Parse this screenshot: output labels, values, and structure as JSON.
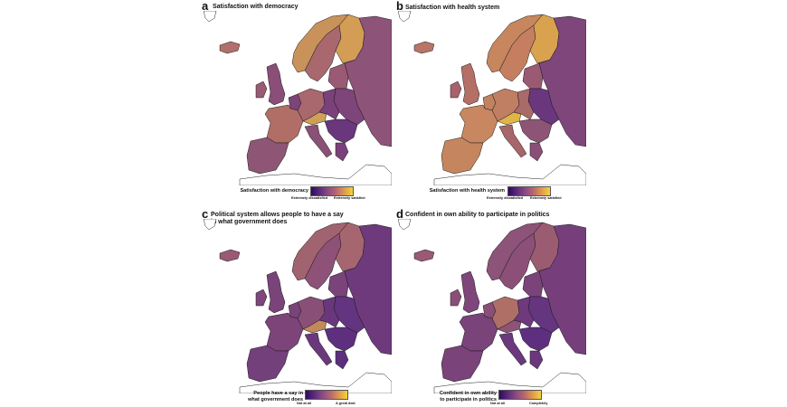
{
  "panels": [
    {
      "letter": "a",
      "title": "Satisfaction with democracy",
      "legend": {
        "title": "Satisfaction with democracy",
        "low": "Extremely dissatisfied",
        "high": "Extremely satisfied"
      },
      "fills": {
        "scand": "#a8686e",
        "finland": "#d39d55",
        "norway": "#c9925b",
        "iceland": "#b26f6c",
        "ireland": "#9a5a73",
        "uk": "#8a4e78",
        "fr": "#b06e67",
        "iberia": "#8f5575",
        "de": "#a9676e",
        "benelux": "#7d447a",
        "alps": "#d1a058",
        "ceu": "#7a417a",
        "italy": "#8b5076",
        "balkans": "#6a367c",
        "russia": "#8e5378",
        "east": "#7e457a",
        "greece": "#7a407c",
        "baltics": "#9a5a73"
      }
    },
    {
      "letter": "b",
      "title": "Satisfaction with health system",
      "legend": {
        "title": "Satisfaction with health system",
        "low": "Extremely dissatisfied",
        "high": "Extremely satisfied"
      },
      "fills": {
        "scand": "#c57f60",
        "finland": "#d9a24f",
        "norway": "#c7865d",
        "iceland": "#b97568",
        "ireland": "#a8626c",
        "uk": "#b46f66",
        "fr": "#c88760",
        "iberia": "#c5865f",
        "de": "#c07f62",
        "benelux": "#c3825f",
        "alps": "#e1b449",
        "ceu": "#a96a69",
        "italy": "#a76669",
        "balkans": "#8e5476",
        "russia": "#7e467a",
        "east": "#6a367e",
        "greece": "#8a4f77",
        "baltics": "#9a5a73"
      }
    },
    {
      "letter": "c",
      "title": "Political system allows people to have a say\nin what government does",
      "legend": {
        "title": "People have a say in\nwhat government does",
        "low": "Not at all",
        "high": "A great deal"
      },
      "fills": {
        "scand": "#8e5178",
        "finland": "#a6666f",
        "norway": "#a1636f",
        "iceland": "#9a5a73",
        "ireland": "#7e467a",
        "uk": "#7a437a",
        "fr": "#7d447a",
        "iberia": "#73407c",
        "de": "#8a4f77",
        "benelux": "#7a437a",
        "alps": "#c18a5d",
        "ceu": "#6a377d",
        "italy": "#6b387d",
        "balkans": "#5e2f7e",
        "russia": "#6e3a7c",
        "east": "#633480",
        "greece": "#5c2f7e",
        "baltics": "#7a437a"
      }
    },
    {
      "letter": "d",
      "title": "Confident in own ability to participate in politics",
      "legend": {
        "title": "Confident in own ability\nto participate in politics",
        "low": "Not at all",
        "high": "Completely"
      },
      "fills": {
        "scand": "#8c5078",
        "finland": "#9b5c72",
        "norway": "#8e5378",
        "iceland": "#9a5a73",
        "ireland": "#8a4f77",
        "uk": "#7e467a",
        "fr": "#7a437a",
        "iberia": "#7a437a",
        "de": "#b06f66",
        "benelux": "#8a4f77",
        "alps": "#8e5378",
        "ceu": "#6e3a7c",
        "italy": "#6b387d",
        "balkans": "#5e2f7e",
        "russia": "#763f7c",
        "east": "#653580",
        "greece": "#6a377d",
        "baltics": "#7a437a"
      }
    }
  ]
}
